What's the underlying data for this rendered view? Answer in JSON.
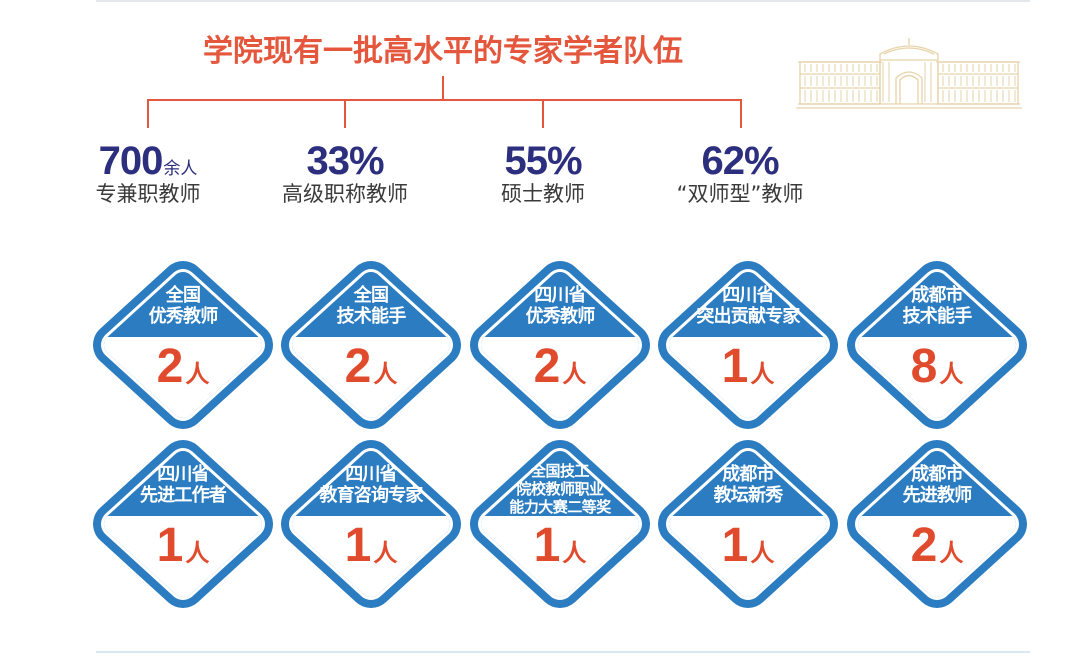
{
  "title": "学院现有一批高水平的专家学者队伍",
  "stats": [
    {
      "value": "700",
      "unit": "余人",
      "label": "专兼职教师"
    },
    {
      "value": "33%",
      "label": "高级职称教师"
    },
    {
      "value": "55%",
      "label": "硕士教师"
    },
    {
      "value": "62%",
      "label": "“双师型”教师"
    }
  ],
  "badges": [
    {
      "lines": [
        "全国",
        "优秀教师"
      ],
      "count": 2,
      "unit": "人"
    },
    {
      "lines": [
        "全国",
        "技术能手"
      ],
      "count": 2,
      "unit": "人"
    },
    {
      "lines": [
        "四川省",
        "优秀教师"
      ],
      "count": 2,
      "unit": "人"
    },
    {
      "lines": [
        "四川省",
        "突出贡献专家"
      ],
      "count": 1,
      "unit": "人"
    },
    {
      "lines": [
        "成都市",
        "技术能手"
      ],
      "count": 8,
      "unit": "人"
    },
    {
      "lines": [
        "四川省",
        "先进工作者"
      ],
      "count": 1,
      "unit": "人"
    },
    {
      "lines": [
        "四川省",
        "教育咨询专家"
      ],
      "count": 1,
      "unit": "人"
    },
    {
      "lines": [
        "全国技工",
        "院校教师职业",
        "能力大赛二等奖"
      ],
      "count": 1,
      "unit": "人"
    },
    {
      "lines": [
        "成都市",
        "教坛新秀"
      ],
      "count": 1,
      "unit": "人"
    },
    {
      "lines": [
        "成都市",
        "先进教师"
      ],
      "count": 2,
      "unit": "人"
    }
  ],
  "colors": {
    "accent": "#e5573c",
    "count": "#e14b2d",
    "badge_blue": "#2b7cc1",
    "stat_navy": "#2c2e7e",
    "text_gray": "#3a3a3a",
    "illustration": "#e6d3a9"
  },
  "decor": {
    "illustration_icon": "building-illustration"
  }
}
